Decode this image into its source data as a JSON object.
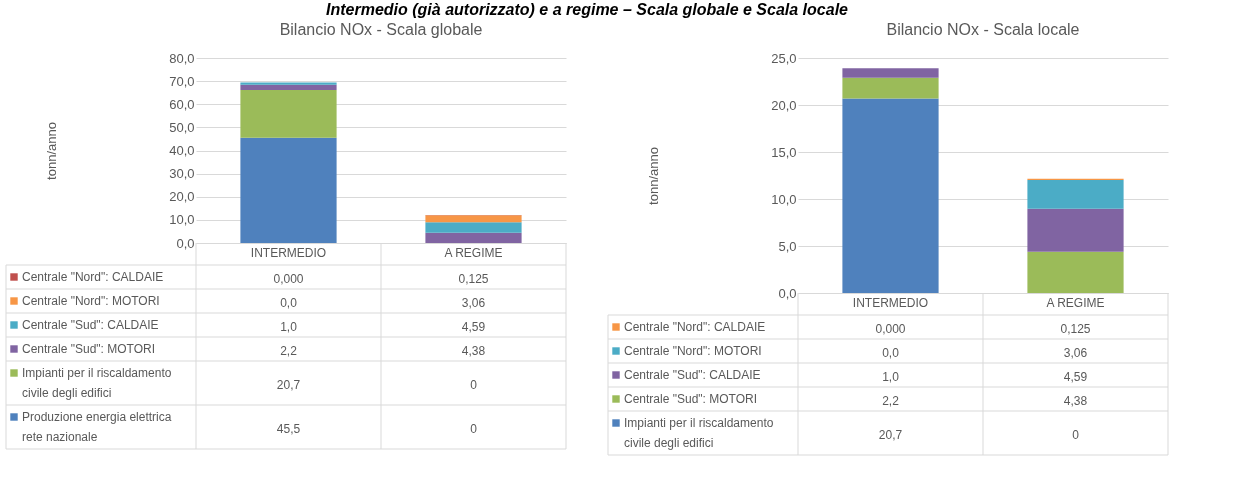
{
  "chart_data": [
    {
      "type": "bar",
      "stacked": true,
      "title": "Bilancio NOx - Scala globale",
      "ylabel": "tonn/anno",
      "annotations": [
        "Intermedio (già autorizzato) e a regime – Scala globale e Scala locale"
      ],
      "categories": [
        "INTERMEDIO",
        "A REGIME"
      ],
      "ylim": [
        0,
        80
      ],
      "yticks": [
        {
          "value": 0,
          "label": "0,0"
        },
        {
          "value": 10,
          "label": "10,0"
        },
        {
          "value": 20,
          "label": "20,0"
        },
        {
          "value": 30,
          "label": "30,0"
        },
        {
          "value": 40,
          "label": "40,0"
        },
        {
          "value": 50,
          "label": "50,0"
        },
        {
          "value": 60,
          "label": "60,0"
        },
        {
          "value": 70,
          "label": "70,0"
        },
        {
          "value": 80,
          "label": "80,0"
        }
      ],
      "grid": "y",
      "legend": "bottom",
      "series": [
        {
          "name": "Produzione energia elettrica rete nazionale",
          "color": "#4f81bd",
          "values": [
            45.5,
            0
          ],
          "value_labels": [
            "45,5",
            "0"
          ]
        },
        {
          "name": "Impianti per il riscaldamento civile degli edifici",
          "color": "#9bbb59",
          "values": [
            20.7,
            0
          ],
          "value_labels": [
            "20,7",
            "0"
          ]
        },
        {
          "name": "Centrale \"Sud\": MOTORI",
          "color": "#8064a2",
          "values": [
            2.2,
            4.38
          ],
          "value_labels": [
            "2,2",
            "4,38"
          ]
        },
        {
          "name": "Centrale \"Sud\": CALDAIE",
          "color": "#4bacc6",
          "values": [
            1.0,
            4.59
          ],
          "value_labels": [
            "1,0",
            "4,59"
          ]
        },
        {
          "name": "Centrale \"Nord\": MOTORI",
          "color": "#f79646",
          "values": [
            0.0,
            3.06
          ],
          "value_labels": [
            "0,0",
            "3,06"
          ]
        },
        {
          "name": "Centrale \"Nord\": CALDAIE",
          "color": "#c0504d",
          "values": [
            0.0,
            0.125
          ],
          "value_labels": [
            "0,000",
            "0,125"
          ]
        }
      ]
    },
    {
      "type": "bar",
      "stacked": true,
      "title": "Bilancio NOx - Scala locale",
      "ylabel": "tonn/anno",
      "categories": [
        "INTERMEDIO",
        "A REGIME"
      ],
      "ylim": [
        0,
        25
      ],
      "yticks": [
        {
          "value": 0,
          "label": "0,0"
        },
        {
          "value": 5,
          "label": "5,0"
        },
        {
          "value": 10,
          "label": "10,0"
        },
        {
          "value": 15,
          "label": "15,0"
        },
        {
          "value": 20,
          "label": "20,0"
        },
        {
          "value": 25,
          "label": "25,0"
        }
      ],
      "grid": "y",
      "legend": "bottom",
      "series": [
        {
          "name": "Impianti per il riscaldamento civile degli edifici",
          "color": "#4f81bd",
          "values": [
            20.7,
            0
          ],
          "value_labels": [
            "20,7",
            "0"
          ]
        },
        {
          "name": "Centrale \"Sud\": MOTORI",
          "color": "#9bbb59",
          "values": [
            2.2,
            4.38
          ],
          "value_labels": [
            "2,2",
            "4,38"
          ]
        },
        {
          "name": "Centrale \"Sud\": CALDAIE",
          "color": "#8064a2",
          "values": [
            1.0,
            4.59
          ],
          "value_labels": [
            "1,0",
            "4,59"
          ]
        },
        {
          "name": "Centrale \"Nord\": MOTORI",
          "color": "#4bacc6",
          "values": [
            0.0,
            3.06
          ],
          "value_labels": [
            "0,0",
            "3,06"
          ]
        },
        {
          "name": "Centrale \"Nord\": CALDAIE",
          "color": "#f79646",
          "values": [
            0.0,
            0.125
          ],
          "value_labels": [
            "0,000",
            "0,125"
          ]
        }
      ]
    }
  ]
}
